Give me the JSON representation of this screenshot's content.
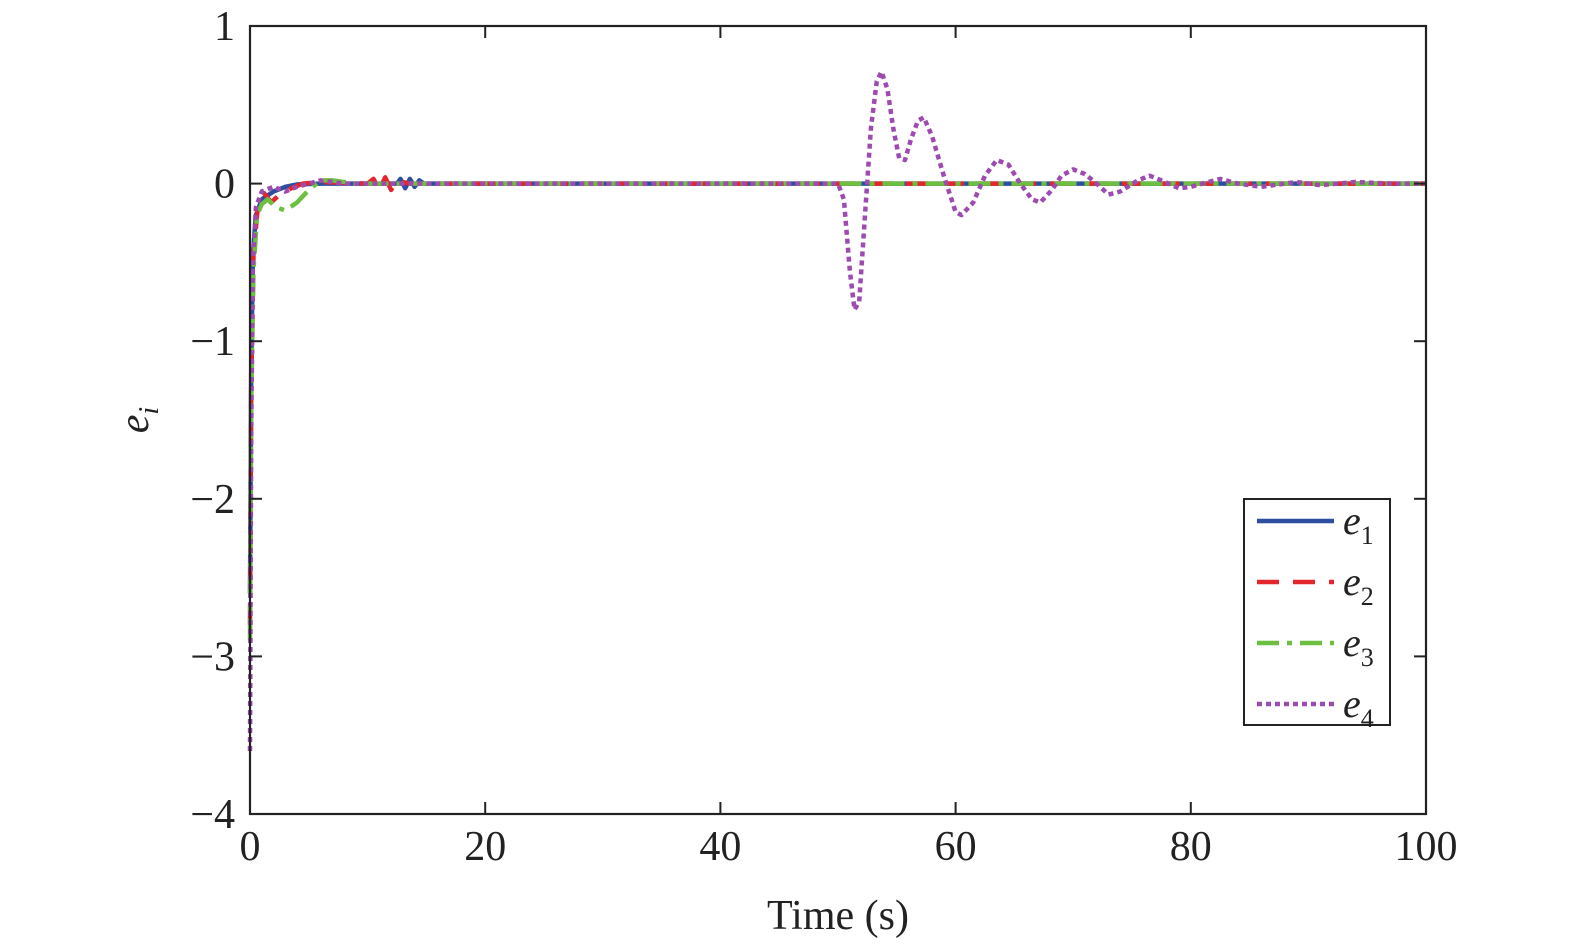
{
  "chart_data": {
    "type": "line",
    "xlabel": "Time (s)",
    "ylabel": {
      "base": "e",
      "sub": "i"
    },
    "xlim": [
      0,
      100
    ],
    "ylim": [
      -4,
      1
    ],
    "x_ticks": [
      0,
      20,
      40,
      60,
      80,
      100
    ],
    "x_tick_labels": [
      "0",
      "20",
      "40",
      "60",
      "80",
      "100"
    ],
    "y_ticks": [
      1,
      0,
      -1,
      -2,
      -3,
      -4
    ],
    "y_tick_labels": [
      "1",
      "0",
      "−1",
      "−2",
      "−3",
      "−4"
    ],
    "grid": false,
    "legend_position": "bottom-right",
    "series": [
      {
        "name": "e1",
        "label_base": "e",
        "label_sub": "1",
        "color": "#2e4fa0",
        "dash": "solid",
        "points": [
          [
            0,
            -2.6
          ],
          [
            0.1,
            -1.2
          ],
          [
            0.25,
            -0.45
          ],
          [
            0.5,
            -0.2
          ],
          [
            1,
            -0.1
          ],
          [
            2,
            -0.05
          ],
          [
            3,
            -0.02
          ],
          [
            4,
            -0.005
          ],
          [
            6,
            0
          ],
          [
            10,
            0
          ],
          [
            12.5,
            0
          ],
          [
            12.8,
            0.03
          ],
          [
            13.2,
            -0.03
          ],
          [
            13.6,
            0.03
          ],
          [
            14,
            -0.02
          ],
          [
            14.4,
            0.02
          ],
          [
            14.8,
            0
          ],
          [
            20,
            0
          ],
          [
            100,
            0
          ]
        ]
      },
      {
        "name": "e2",
        "label_base": "e",
        "label_sub": "2",
        "color": "#e4262c",
        "dash": "dashed",
        "points": [
          [
            0,
            -2.8
          ],
          [
            0.1,
            -1.3
          ],
          [
            0.3,
            -0.45
          ],
          [
            0.7,
            -0.12
          ],
          [
            1.2,
            -0.06
          ],
          [
            1.8,
            -0.12
          ],
          [
            2.5,
            -0.07
          ],
          [
            3.5,
            -0.03
          ],
          [
            4.5,
            0
          ],
          [
            6,
            0.01
          ],
          [
            10,
            0
          ],
          [
            10.5,
            0.03
          ],
          [
            11,
            -0.04
          ],
          [
            11.5,
            0.04
          ],
          [
            12,
            -0.04
          ],
          [
            12.5,
            0.02
          ],
          [
            13.5,
            0
          ],
          [
            100,
            0
          ]
        ]
      },
      {
        "name": "e3",
        "label_base": "e",
        "label_sub": "3",
        "color": "#6cbf3f",
        "dash": "dashdot",
        "points": [
          [
            0,
            -2.9
          ],
          [
            0.1,
            -1.4
          ],
          [
            0.3,
            -0.55
          ],
          [
            0.6,
            -0.2
          ],
          [
            1,
            -0.13
          ],
          [
            1.5,
            -0.1
          ],
          [
            2.2,
            -0.15
          ],
          [
            3,
            -0.17
          ],
          [
            4,
            -0.12
          ],
          [
            5,
            -0.04
          ],
          [
            6,
            0.02
          ],
          [
            7,
            0.02
          ],
          [
            9,
            0
          ],
          [
            100,
            0
          ]
        ]
      },
      {
        "name": "e4",
        "label_base": "e",
        "label_sub": "4",
        "color": "#9d4bb0",
        "dash": "dotted",
        "points": [
          [
            0,
            -3.6
          ],
          [
            0.1,
            -1.6
          ],
          [
            0.25,
            -0.5
          ],
          [
            0.5,
            -0.15
          ],
          [
            1,
            -0.05
          ],
          [
            2,
            -0.02
          ],
          [
            3,
            -0.05
          ],
          [
            4,
            -0.02
          ],
          [
            5,
            0
          ],
          [
            6,
            0.02
          ],
          [
            8,
            0
          ],
          [
            50,
            0
          ],
          [
            50.5,
            -0.1
          ],
          [
            51,
            -0.55
          ],
          [
            51.4,
            -0.8
          ],
          [
            51.8,
            -0.75
          ],
          [
            52.3,
            -0.2
          ],
          [
            52.8,
            0.35
          ],
          [
            53.3,
            0.65
          ],
          [
            53.7,
            0.71
          ],
          [
            54.2,
            0.6
          ],
          [
            54.7,
            0.35
          ],
          [
            55.2,
            0.16
          ],
          [
            55.7,
            0.15
          ],
          [
            56.2,
            0.28
          ],
          [
            56.8,
            0.4
          ],
          [
            57.3,
            0.42
          ],
          [
            58,
            0.3
          ],
          [
            59,
            0.05
          ],
          [
            60,
            -0.18
          ],
          [
            60.5,
            -0.2
          ],
          [
            61.5,
            -0.12
          ],
          [
            62.5,
            0.05
          ],
          [
            63.5,
            0.15
          ],
          [
            64.5,
            0.12
          ],
          [
            65.5,
            0
          ],
          [
            66.5,
            -0.1
          ],
          [
            67.2,
            -0.12
          ],
          [
            68.2,
            -0.04
          ],
          [
            69,
            0.05
          ],
          [
            70,
            0.09
          ],
          [
            71,
            0.06
          ],
          [
            72,
            0
          ],
          [
            73,
            -0.07
          ],
          [
            74,
            -0.05
          ],
          [
            75.5,
            0.02
          ],
          [
            76.5,
            0.05
          ],
          [
            77.5,
            0.02
          ],
          [
            79,
            -0.03
          ],
          [
            80,
            -0.02
          ],
          [
            81.5,
            0.01
          ],
          [
            82.5,
            0.03
          ],
          [
            84,
            0
          ],
          [
            86,
            -0.02
          ],
          [
            88,
            0
          ],
          [
            89,
            0.01
          ],
          [
            91,
            -0.01
          ],
          [
            94,
            0.01
          ],
          [
            97,
            0
          ],
          [
            100,
            0
          ]
        ]
      }
    ]
  }
}
